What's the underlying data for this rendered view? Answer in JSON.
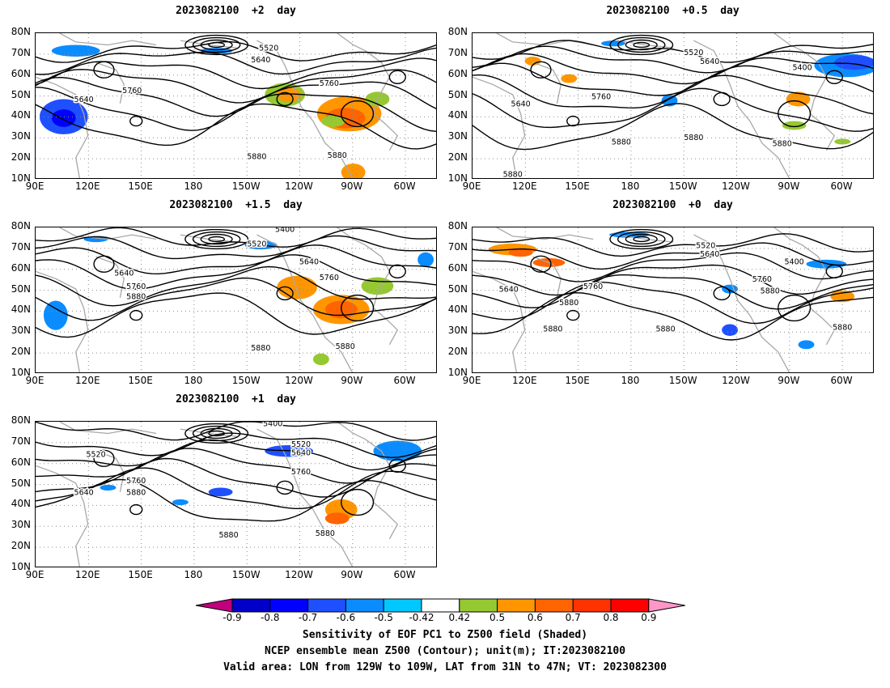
{
  "panels": [
    {
      "title": "2023082100  +2  day",
      "contours": [
        "5640",
        "5760",
        "5520",
        "5640",
        "5760",
        "5880",
        "5880"
      ]
    },
    {
      "title": "2023082100  +0.5  day",
      "contours": [
        "5520",
        "5640",
        "5400",
        "5640",
        "5760",
        "5880",
        "5880",
        "5880",
        "5880"
      ]
    },
    {
      "title": "2023082100  +1.5  day",
      "contours": [
        "5400",
        "5520",
        "5640",
        "5640",
        "5760",
        "5760",
        "5880",
        "5880",
        "5880"
      ]
    },
    {
      "title": "2023082100  +0  day",
      "contours": [
        "5520",
        "5640",
        "5400",
        "5640",
        "5760",
        "5760",
        "5880",
        "5880",
        "5880",
        "5880",
        "5880"
      ]
    },
    {
      "title": "2023082100  +1  day",
      "contours": [
        "5400",
        "5520",
        "5520",
        "5640",
        "5640",
        "5760",
        "5760",
        "5880",
        "5880",
        "5880"
      ]
    }
  ],
  "axes": {
    "lat_labels": [
      "80N",
      "70N",
      "60N",
      "50N",
      "40N",
      "30N",
      "20N",
      "10N"
    ],
    "lon_labels": [
      "90E",
      "120E",
      "150E",
      "180",
      "150W",
      "120W",
      "90W",
      "60W"
    ]
  },
  "colorbar": {
    "labels": [
      "-0.9",
      "-0.8",
      "-0.7",
      "-0.6",
      "-0.5",
      "-0.42",
      "0.42",
      "0.5",
      "0.6",
      "0.7",
      "0.8",
      "0.9"
    ],
    "colors": [
      "#c0007f",
      "#0000c8",
      "#0000ff",
      "#1e50ff",
      "#0a8cff",
      "#00c8ff",
      "#ffffff",
      "#96c832",
      "#ff9600",
      "#ff6400",
      "#ff3200",
      "#ff0000",
      "#ff96c8"
    ]
  },
  "caption": {
    "line1": "Sensitivity of EOF PC1 to Z500 field (Shaded)",
    "line2": "NCEP ensemble mean Z500 (Contour); unit(m); IT:2023082100",
    "line3": "Valid area: LON from 129W to 109W, LAT from 31N to 47N; VT: 2023082300"
  },
  "colors": {
    "contour": "#000000",
    "coast": "#a8a8a8",
    "grid": "#8c8c8c"
  }
}
